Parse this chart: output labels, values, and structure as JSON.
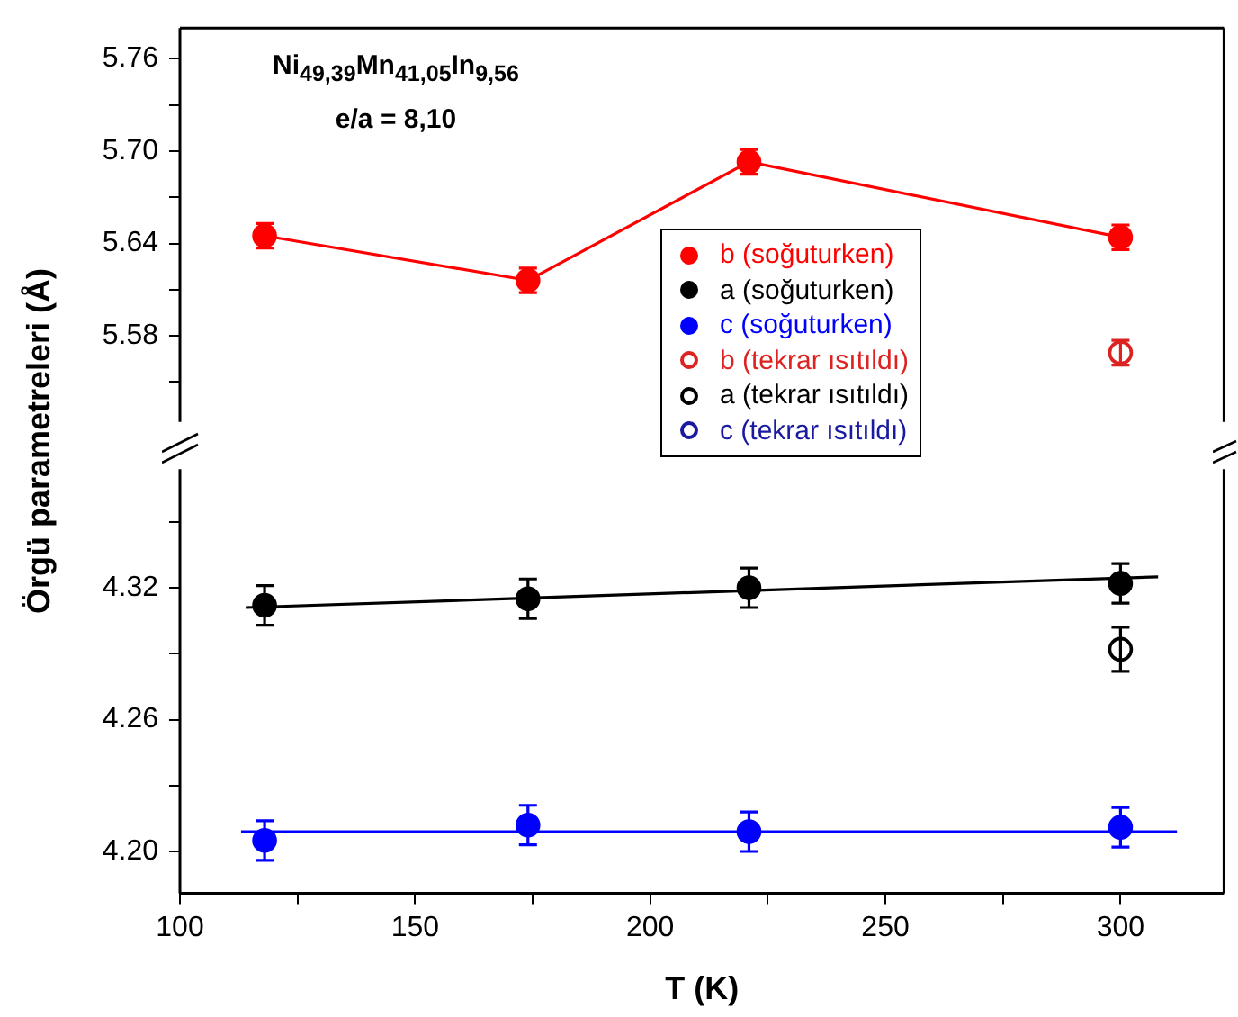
{
  "chart_data": [
    {
      "type": "scatter",
      "ylabel": "Örgü parametreleri (Å)",
      "annotations": [
        "Ni$_{49,39}$Mn$_{41,05}$In$_{9,56}$",
        "e/a = 8,10"
      ],
      "legend": "right",
      "tick_labels": "y",
      "xlim": [
        100,
        322
      ],
      "ylim": [
        5.524,
        5.78
      ],
      "yticks": [
        {
          "value": 5.55,
          "label": null
        },
        5.58,
        {
          "value": 5.61,
          "label": null
        },
        5.64,
        {
          "value": 5.67,
          "label": null
        },
        {
          "value": 5.7,
          "label": "5.70"
        },
        {
          "value": 5.73,
          "label": null
        },
        5.76
      ],
      "series": [
        {
          "name": "b (soğuturken)",
          "type": "line",
          "marker": "circle",
          "color": "#ff0000",
          "x": [
            118,
            174,
            221,
            300
          ],
          "values": [
            5.645,
            5.616,
            5.693,
            5.644
          ],
          "errors": [
            0.008,
            0.008,
            0.008,
            0.008
          ]
        },
        {
          "name": "b (tekrar ısıtıldı)",
          "type": "scatter",
          "marker": "circle-open",
          "color": "#dd2222",
          "x": [
            300
          ],
          "values": [
            5.569
          ],
          "errors": [
            0.008
          ]
        }
      ]
    },
    {
      "type": "scatter",
      "xlabel": "T (K)",
      "legend": "right",
      "xlim": [
        100,
        322
      ],
      "ylim": [
        4.181,
        4.374
      ],
      "xticks": [
        100,
        {
          "value": 125,
          "label": null
        },
        150,
        {
          "value": 175,
          "label": null
        },
        200,
        {
          "value": 225,
          "label": null
        },
        250,
        {
          "value": 275,
          "label": null
        },
        300
      ],
      "yticks": [
        {
          "value": 4.2,
          "label": "4.20"
        },
        {
          "value": 4.23,
          "label": null
        },
        4.26,
        {
          "value": 4.29,
          "label": null
        },
        4.32,
        {
          "value": 4.35,
          "label": null
        }
      ],
      "series": [
        {
          "name": "a (soğuturken)",
          "type": "scatter",
          "marker": "circle",
          "color": "#000000",
          "x": [
            118,
            174,
            221,
            300
          ],
          "values": [
            4.312,
            4.315,
            4.32,
            4.322
          ],
          "errors": [
            0.009,
            0.009,
            0.009,
            0.009
          ]
        },
        {
          "name": "c (soğuturken)",
          "type": "scatter",
          "marker": "circle",
          "color": "#0000ff",
          "x": [
            118,
            174,
            221,
            300
          ],
          "values": [
            4.205,
            4.212,
            4.209,
            4.211
          ],
          "errors": [
            0.009,
            0.009,
            0.009,
            0.009
          ]
        },
        {
          "name": "a (tekrar ısıtıldı)",
          "type": "scatter",
          "marker": "circle-open",
          "color": "#000000",
          "x": [
            300
          ],
          "values": [
            4.292
          ],
          "errors": [
            0.01
          ]
        },
        {
          "name": "c (tekrar ısıtıldı)",
          "type": "scatter",
          "marker": "circle-open",
          "color": "#1a1aa0"
        },
        {
          "type": "line",
          "marker": "none",
          "color": "#000000",
          "x": [
            114,
            308
          ],
          "values": [
            4.311,
            4.325
          ]
        },
        {
          "type": "line",
          "marker": "none",
          "color": "#0000ff",
          "x": [
            113,
            312
          ],
          "values": [
            4.209,
            4.209
          ]
        }
      ]
    }
  ]
}
